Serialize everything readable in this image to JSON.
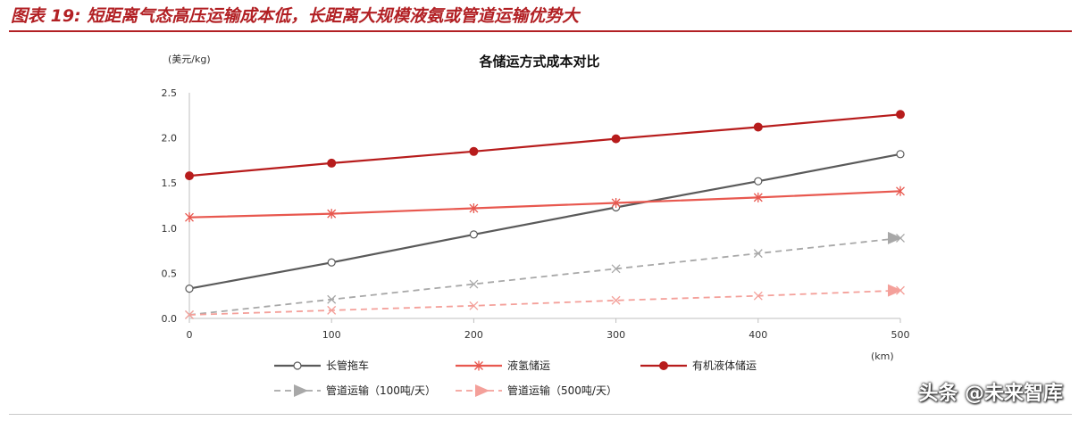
{
  "figure": {
    "title": "图表 19: 短距离气态高压运输成本低，长距离大规模液氨或管道运输优势大"
  },
  "watermark": "头条 @未来智库",
  "colors": {
    "accent": "#b22024",
    "tube_trailer": "#5a5a5a",
    "liquid_hydrogen": "#e8584f",
    "organic_liquid": "#b71c1c",
    "pipeline_100": "#a8a8a8",
    "pipeline_500": "#f4a09a"
  },
  "chart_data": {
    "type": "line",
    "title": "各储运方式成本对比",
    "ylabel": "(美元/kg)",
    "xlabel": "(km)",
    "x": [
      0,
      100,
      200,
      300,
      400,
      500
    ],
    "xlim": [
      0,
      500
    ],
    "ylim": [
      0,
      2.5
    ],
    "x_ticks": [
      "0",
      "100",
      "200",
      "300",
      "400",
      "500"
    ],
    "y_ticks": [
      "0.0",
      "0.5",
      "1.0",
      "1.5",
      "2.0",
      "2.5"
    ],
    "grid": false,
    "legend_position": "bottom",
    "series": [
      {
        "name": "长管拖车",
        "values": [
          0.33,
          0.62,
          0.93,
          1.23,
          1.52,
          1.82
        ],
        "color": "#5a5a5a",
        "marker": "circle-open",
        "dash": false
      },
      {
        "name": "液氢储运",
        "values": [
          1.12,
          1.16,
          1.22,
          1.28,
          1.34,
          1.41
        ],
        "color": "#e8584f",
        "marker": "star",
        "dash": false
      },
      {
        "name": "有机液体储运",
        "values": [
          1.58,
          1.72,
          1.85,
          1.99,
          2.12,
          2.26
        ],
        "color": "#b71c1c",
        "marker": "circle-filled",
        "dash": false
      },
      {
        "name": "管道运输（100吨/天）",
        "values": [
          0.04,
          0.21,
          0.38,
          0.55,
          0.72,
          0.89
        ],
        "color": "#a8a8a8",
        "marker": "x",
        "dash": true
      },
      {
        "name": "管道运输（500吨/天）",
        "values": [
          0.04,
          0.09,
          0.14,
          0.2,
          0.25,
          0.31
        ],
        "color": "#f4a09a",
        "marker": "x",
        "dash": true
      }
    ]
  }
}
